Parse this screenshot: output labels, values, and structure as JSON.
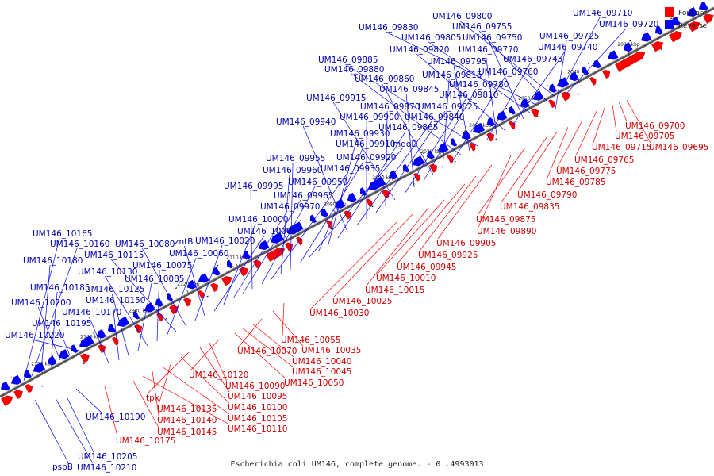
{
  "caption": "Escherichia coli UM146, complete genome. - 0..4993013",
  "legend": {
    "forward": {
      "label": "Forward",
      "color": "#ff0000"
    },
    "reverse": {
      "label": "Reverse",
      "color": "#0000ff"
    }
  },
  "axis": {
    "ticks": [
      "2030 kbp",
      "2040 kbp",
      "2050 kbp",
      "2060 kbp",
      "2070 kbp",
      "2080 kbp",
      "2090 kbp",
      "2100 kbp",
      "2110 kbp",
      "2120 kbp",
      "2130 kbp",
      "2140 kbp",
      "2150 kbp"
    ]
  },
  "reverse_labels": [
    "UM146_09710",
    "UM146_09720",
    "UM146_09800",
    "UM146_09755",
    "UM146_09830",
    "UM146_09725",
    "UM146_09805",
    "UM146_09750",
    "UM146_09740",
    "UM146_09820",
    "UM146_09770",
    "UM146_09745",
    "UM146_09885",
    "UM146_09795",
    "UM146_09880",
    "UM146_09760",
    "UM146_09815",
    "UM146_09860",
    "UM146_09780",
    "UM146_09845",
    "UM146_09810",
    "UM146_09915",
    "UM146_09870",
    "UM146_09825",
    "UM146_09900",
    "UM146_09840",
    "UM146_09940",
    "UM146_09865",
    "UM146_09930",
    "UM146_09910",
    "mdoD",
    "UM146_09920",
    "UM146_09955",
    "UM146_09960",
    "UM146_09935",
    "UM146_09950",
    "UM146_09995",
    "UM146_09965",
    "UM146_09970",
    "UM146_10000",
    "UM146_10005",
    "UM146_10165",
    "zntB",
    "UM146_10020",
    "UM146_10160",
    "UM146_10080",
    "UM146_10115",
    "UM146_10060",
    "UM146_10180",
    "UM146_10075",
    "UM146_10130",
    "UM146_10085",
    "UM146_10185",
    "UM146_10125",
    "UM146_10200",
    "UM146_10150",
    "UM146_10170",
    "UM146_10195",
    "UM146_10220",
    "UM146_10190",
    "UM146_10205",
    "pspB",
    "UM146_10210"
  ],
  "forward_labels": [
    "UM146_09700",
    "UM146_09705",
    "UM146_09715",
    "UM146_09695",
    "UM146_09765",
    "UM146_09775",
    "UM146_09785",
    "UM146_09790",
    "UM146_09835",
    "UM146_09875",
    "UM146_09890",
    "UM146_09905",
    "UM146_09925",
    "UM146_09945",
    "UM146_10010",
    "UM146_10015",
    "UM146_10025",
    "UM146_10030",
    "UM146_10055",
    "UM146_10035",
    "UM146_10070",
    "UM146_10040",
    "UM146_10045",
    "UM146_10050",
    "UM146_10120",
    "UM146_10090",
    "UM146_10095",
    "tpx",
    "UM146_10100",
    "UM146_10135",
    "UM146_10105",
    "UM146_10140",
    "UM146_10110",
    "UM146_10145",
    "UM146_10175"
  ]
}
